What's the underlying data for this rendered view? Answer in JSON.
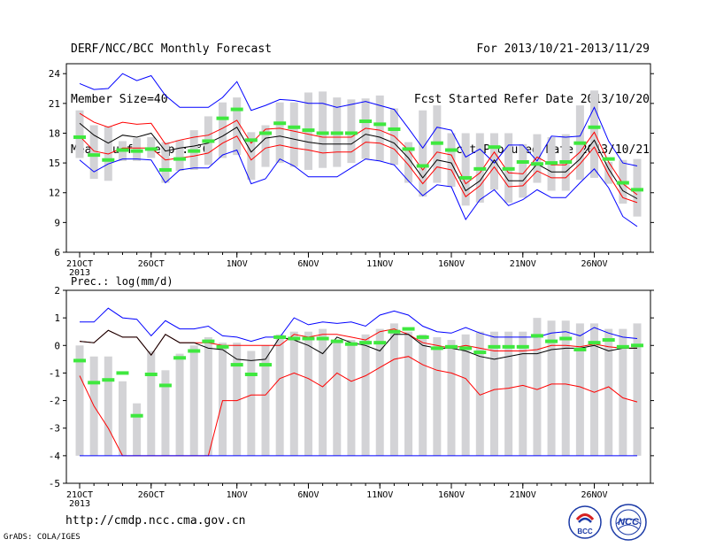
{
  "header": {
    "left": [
      "DERF/NCC/BCC Monthly Forecast",
      "Member Size=40",
      "Mean Surf. Temp.: °C"
    ],
    "right": [
      "For 2013/10/21-2013/11/29",
      "Fcst Started Refer Date 2013/10/20",
      "Fcst Produced Date 2013/10/21"
    ]
  },
  "footer": {
    "url": "http://cmdp.ncc.cma.gov.cn",
    "credit": "GrADS: COLA/IGES"
  },
  "logos": [
    "BCC",
    "NCC"
  ],
  "colors": {
    "max": "#0000ff",
    "quartile": "#ff0000",
    "median": "#000000",
    "spread": "#d3d3d6",
    "mean": "#3fe83f"
  },
  "chart_data": [
    {
      "type": "line",
      "ylim": [
        6,
        25
      ],
      "yticks": [
        6,
        9,
        12,
        15,
        18,
        21,
        24
      ],
      "xtick_labels": [
        {
          "day": 0,
          "text": "21OCT"
        },
        {
          "day": 5,
          "text": "26OCT"
        },
        {
          "day": 11,
          "text": "1NOV"
        },
        {
          "day": 16,
          "text": "6NOV"
        },
        {
          "day": 21,
          "text": "11NOV"
        },
        {
          "day": 26,
          "text": "16NOV"
        },
        {
          "day": 31,
          "text": "21NOV"
        },
        {
          "day": 36,
          "text": "26NOV"
        }
      ],
      "year_label": "2013",
      "x_days": [
        0,
        1,
        2,
        3,
        4,
        5,
        6,
        7,
        8,
        9,
        10,
        11,
        12,
        13,
        14,
        15,
        16,
        17,
        18,
        19,
        20,
        21,
        22,
        23,
        24,
        25,
        26,
        27,
        28,
        29,
        30,
        31,
        32,
        33,
        34,
        35,
        36,
        37,
        38,
        39
      ],
      "series": [
        {
          "role": "upper-envelope",
          "values": [
            23.0,
            22.4,
            22.5,
            24.0,
            23.3,
            23.8,
            21.8,
            20.6,
            20.6,
            20.6,
            21.6,
            23.2,
            20.3,
            20.8,
            21.4,
            21.3,
            21.0,
            21.0,
            20.6,
            20.9,
            21.2,
            20.8,
            20.4,
            18.5,
            16.5,
            18.6,
            18.3,
            15.6,
            16.4,
            15.0,
            16.8,
            16.8,
            15.2,
            17.7,
            17.6,
            17.7,
            20.6,
            17.2,
            15.0,
            14.7
          ]
        },
        {
          "role": "upper-quartile",
          "values": [
            20.0,
            19.1,
            18.6,
            19.1,
            18.9,
            19.0,
            16.9,
            17.3,
            17.6,
            17.8,
            18.5,
            19.3,
            17.0,
            18.4,
            18.5,
            18.2,
            17.9,
            17.6,
            17.6,
            17.6,
            18.5,
            18.3,
            17.7,
            16.3,
            14.3,
            16.1,
            15.8,
            12.9,
            14.0,
            16.1,
            14.0,
            13.9,
            15.6,
            14.8,
            14.8,
            16.1,
            18.1,
            15.1,
            12.9,
            11.8
          ]
        },
        {
          "role": "median",
          "values": [
            19.0,
            17.8,
            17.0,
            17.8,
            17.6,
            18.0,
            16.2,
            16.5,
            16.7,
            17.0,
            17.7,
            18.6,
            16.1,
            17.5,
            17.7,
            17.4,
            17.1,
            16.9,
            16.9,
            16.9,
            17.9,
            17.6,
            17.0,
            15.5,
            13.5,
            15.3,
            15.0,
            12.2,
            13.2,
            15.3,
            13.2,
            13.2,
            14.9,
            14.1,
            14.1,
            15.4,
            17.3,
            14.4,
            12.2,
            11.4
          ]
        },
        {
          "role": "lower-quartile",
          "values": [
            17.7,
            16.2,
            15.9,
            16.5,
            16.5,
            16.5,
            15.3,
            15.5,
            15.7,
            16.0,
            17.0,
            17.7,
            15.3,
            16.5,
            16.8,
            16.5,
            16.3,
            16.0,
            16.1,
            16.1,
            17.1,
            17.0,
            16.4,
            14.8,
            12.9,
            14.6,
            14.3,
            11.6,
            12.7,
            14.6,
            12.6,
            12.7,
            14.2,
            13.5,
            13.5,
            14.9,
            16.6,
            13.8,
            11.5,
            11.0
          ]
        },
        {
          "role": "lower-envelope",
          "values": [
            15.3,
            14.1,
            14.9,
            15.4,
            15.4,
            15.3,
            13.0,
            14.3,
            14.5,
            14.5,
            15.8,
            16.3,
            12.9,
            13.4,
            15.4,
            14.7,
            13.6,
            13.6,
            13.6,
            14.5,
            15.4,
            15.2,
            14.8,
            13.2,
            11.7,
            12.8,
            12.6,
            9.3,
            11.3,
            12.3,
            10.7,
            11.3,
            12.3,
            11.5,
            11.5,
            13.0,
            14.4,
            12.5,
            9.6,
            8.6
          ]
        },
        {
          "role": "ensemble-mean",
          "values": [
            17.6,
            15.8,
            15.3,
            16.3,
            16.2,
            16.4,
            14.3,
            15.4,
            16.2,
            17.2,
            19.5,
            20.4,
            17.3,
            18.0,
            19.0,
            18.6,
            18.3,
            18.0,
            18.0,
            18.0,
            19.2,
            18.9,
            18.4,
            16.4,
            14.7,
            17.0,
            16.3,
            13.5,
            14.4,
            16.6,
            14.4,
            15.1,
            14.9,
            15.0,
            15.1,
            17.0,
            18.6,
            15.4,
            13.0,
            12.3
          ]
        }
      ],
      "bars": {
        "role": "spread",
        "low": [
          15.5,
          13.4,
          13.2,
          15.2,
          15.2,
          15.5,
          13.0,
          14.2,
          14.3,
          14.8,
          15.5,
          15.8,
          13.3,
          14.6,
          15.0,
          14.6,
          14.3,
          14.5,
          14.6,
          15.0,
          15.4,
          15.2,
          14.8,
          13.0,
          11.6,
          13.0,
          12.6,
          10.7,
          11.0,
          12.3,
          11.0,
          11.5,
          13.0,
          12.2,
          12.2,
          13.3,
          13.5,
          12.9,
          10.9,
          9.6
        ],
        "high": [
          20.3,
          18.8,
          18.7,
          17.2,
          17.5,
          17.6,
          17.1,
          17.3,
          18.3,
          19.7,
          21.1,
          21.6,
          18.1,
          18.8,
          21.1,
          21.1,
          22.1,
          22.2,
          21.6,
          21.4,
          21.5,
          21.8,
          20.5,
          17.1,
          20.3,
          20.8,
          18.0,
          18.0,
          18.0,
          18.0,
          18.0,
          16.9,
          17.9,
          17.6,
          17.9,
          20.8,
          22.3,
          15.1,
          15.3,
          15.4
        ]
      }
    },
    {
      "type": "line",
      "title": "Prec.: log(mm/d)",
      "ylim": [
        -5,
        2
      ],
      "yticks": [
        -5,
        -4,
        -3,
        -2,
        -1,
        0,
        1,
        2
      ],
      "xtick_labels": [
        {
          "day": 0,
          "text": "21OCT"
        },
        {
          "day": 5,
          "text": "26OCT"
        },
        {
          "day": 11,
          "text": "1NOV"
        },
        {
          "day": 16,
          "text": "6NOV"
        },
        {
          "day": 21,
          "text": "11NOV"
        },
        {
          "day": 26,
          "text": "16NOV"
        },
        {
          "day": 31,
          "text": "21NOV"
        },
        {
          "day": 36,
          "text": "26NOV"
        }
      ],
      "year_label": "2013",
      "x_days": [
        0,
        1,
        2,
        3,
        4,
        5,
        6,
        7,
        8,
        9,
        10,
        11,
        12,
        13,
        14,
        15,
        16,
        17,
        18,
        19,
        20,
        21,
        22,
        23,
        24,
        25,
        26,
        27,
        28,
        29,
        30,
        31,
        32,
        33,
        34,
        35,
        36,
        37,
        38,
        39
      ],
      "series": [
        {
          "role": "upper-envelope",
          "values": [
            0.85,
            0.85,
            1.35,
            1.0,
            0.95,
            0.35,
            0.9,
            0.6,
            0.6,
            0.7,
            0.35,
            0.3,
            0.15,
            0.3,
            0.3,
            1.0,
            0.75,
            0.85,
            0.8,
            0.85,
            0.7,
            1.1,
            1.25,
            1.1,
            0.7,
            0.5,
            0.45,
            0.65,
            0.45,
            0.3,
            0.3,
            0.3,
            0.3,
            0.45,
            0.5,
            0.35,
            0.65,
            0.45,
            0.3,
            0.25
          ]
        },
        {
          "role": "upper-quartile",
          "values": [
            0.15,
            0.1,
            0.55,
            0.3,
            0.3,
            -0.35,
            0.4,
            0.1,
            0.1,
            0.1,
            0.0,
            0.0,
            0.0,
            0.0,
            0.0,
            0.4,
            0.3,
            0.4,
            0.4,
            0.3,
            0.2,
            0.5,
            0.6,
            0.4,
            0.1,
            0.0,
            -0.1,
            0.0,
            -0.1,
            -0.2,
            -0.2,
            -0.2,
            -0.15,
            0.0,
            0.0,
            -0.05,
            0.05,
            -0.05,
            -0.1,
            -0.1
          ]
        },
        {
          "role": "median",
          "values": [
            0.15,
            0.1,
            0.55,
            0.3,
            0.3,
            -0.35,
            0.4,
            0.1,
            0.1,
            -0.1,
            -0.15,
            -0.5,
            -0.55,
            -0.5,
            0.3,
            0.2,
            0.0,
            -0.3,
            0.3,
            0.1,
            0.0,
            -0.2,
            0.4,
            0.4,
            0.0,
            -0.1,
            -0.1,
            -0.2,
            -0.4,
            -0.5,
            -0.4,
            -0.3,
            -0.3,
            -0.15,
            -0.1,
            -0.1,
            0.0,
            -0.2,
            -0.1,
            -0.1
          ]
        },
        {
          "role": "lower-quartile",
          "values": [
            -1.1,
            -2.2,
            -3.0,
            -4.0,
            -4.0,
            -4.0,
            -4.0,
            -4.0,
            -4.0,
            -4.0,
            -2.0,
            -2.0,
            -1.8,
            -1.8,
            -1.2,
            -1.0,
            -1.2,
            -1.5,
            -1.0,
            -1.3,
            -1.1,
            -0.8,
            -0.5,
            -0.4,
            -0.7,
            -0.9,
            -1.0,
            -1.2,
            -1.8,
            -1.6,
            -1.55,
            -1.45,
            -1.6,
            -1.4,
            -1.4,
            -1.5,
            -1.7,
            -1.5,
            -1.9,
            -2.05
          ]
        },
        {
          "role": "lower-envelope",
          "values": [
            -4.0,
            -4.0,
            -4.0,
            -4.0,
            -4.0,
            -4.0,
            -4.0,
            -4.0,
            -4.0,
            -4.0,
            -4.0,
            -4.0,
            -4.0,
            -4.0,
            -4.0,
            -4.0,
            -4.0,
            -4.0,
            -4.0,
            -4.0,
            -4.0,
            -4.0,
            -4.0,
            -4.0,
            -4.0,
            -4.0,
            -4.0,
            -4.0,
            -4.0,
            -4.0,
            -4.0,
            -4.0,
            -4.0,
            -4.0,
            -4.0,
            -4.0,
            -4.0,
            -4.0,
            -4.0,
            -4.0
          ]
        },
        {
          "role": "ensemble-mean",
          "values": [
            -0.55,
            -1.35,
            -1.25,
            -1.0,
            -2.55,
            -1.05,
            -1.45,
            -0.45,
            -0.2,
            0.15,
            -0.05,
            -0.7,
            -1.05,
            -0.7,
            0.3,
            0.25,
            0.25,
            0.25,
            0.15,
            0.05,
            0.1,
            0.1,
            0.5,
            0.6,
            0.3,
            -0.1,
            -0.05,
            -0.1,
            -0.25,
            -0.05,
            -0.05,
            -0.05,
            0.35,
            0.15,
            0.25,
            -0.15,
            0.1,
            0.2,
            -0.05,
            0.0
          ]
        }
      ],
      "bars": {
        "role": "spread",
        "low": [
          -4.0,
          -4.0,
          -4.0,
          -4.0,
          -4.0,
          -4.0,
          -4.0,
          -4.0,
          -4.0,
          -4.0,
          -4.0,
          -4.0,
          -4.0,
          -4.0,
          -4.0,
          -4.0,
          -4.0,
          -4.0,
          -4.0,
          -4.0,
          -4.0,
          -4.0,
          -4.0,
          -4.0,
          -4.0,
          -4.0,
          -4.0,
          -4.0,
          -4.0,
          -4.0,
          -4.0,
          -4.0,
          -4.0,
          -4.0,
          -4.0,
          -4.0,
          -4.0,
          -4.0,
          -4.0,
          -4.0
        ],
        "high": [
          0.0,
          -0.4,
          -0.4,
          -1.3,
          -2.1,
          -0.2,
          -0.9,
          -0.3,
          0.0,
          0.3,
          0.1,
          0.1,
          -0.2,
          0.0,
          0.4,
          0.5,
          0.5,
          0.6,
          0.2,
          0.2,
          0.4,
          0.6,
          0.8,
          0.5,
          0.4,
          0.3,
          0.2,
          0.4,
          0.5,
          0.5,
          0.5,
          0.5,
          1.0,
          0.9,
          0.9,
          0.8,
          0.8,
          0.6,
          0.6,
          0.8
        ]
      }
    }
  ]
}
